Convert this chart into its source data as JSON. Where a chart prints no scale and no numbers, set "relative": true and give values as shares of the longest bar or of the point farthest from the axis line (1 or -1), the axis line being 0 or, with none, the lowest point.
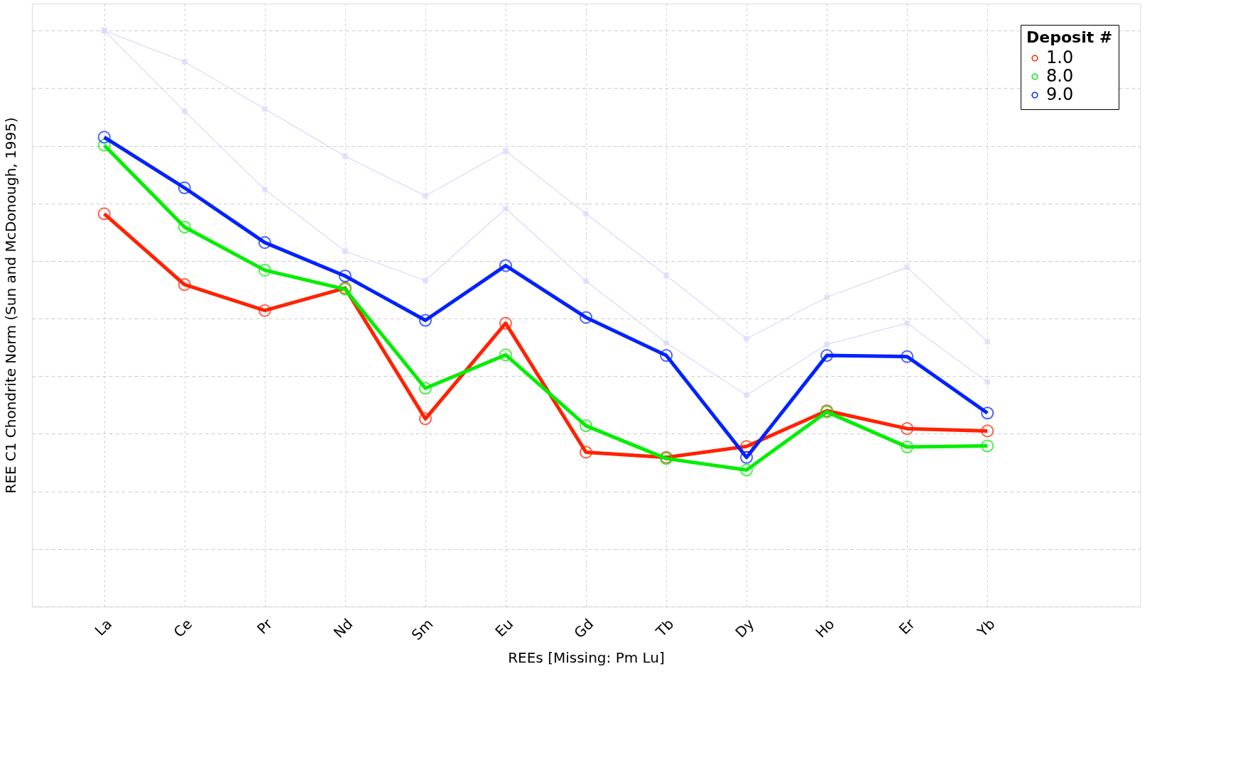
{
  "chart_data": {
    "type": "line",
    "xlabel": "REEs [Missing: Pm Lu]",
    "ylabel": "REE C1 Chondrite Norm (Sun and McDonough, 1995)",
    "legend_title": "Deposit #",
    "legend": "top right",
    "grid": true,
    "relative": true,
    "line_style": "solid",
    "categories": [
      "La",
      "Ce",
      "Pr",
      "Nd",
      "Sm",
      "Eu",
      "Gd",
      "Tb",
      "Dy",
      "Ho",
      "Er",
      "Yb"
    ],
    "series": [
      {
        "color": "#d9d9ff",
        "marker": "square",
        "values": [
          1.0,
          0.946,
          0.864,
          0.782,
          0.713,
          0.791,
          0.682,
          0.575,
          0.465,
          0.537,
          0.589,
          0.46
        ]
      },
      {
        "color": "#d9d9ff",
        "marker": "square",
        "values": [
          1.0,
          0.86,
          0.724,
          0.617,
          0.566,
          0.691,
          0.565,
          0.458,
          0.367,
          0.455,
          0.492,
          0.39
        ]
      },
      {
        "name": "1.0",
        "color": "#ff2200",
        "marker": "circle",
        "values": [
          0.682,
          0.559,
          0.514,
          0.553,
          0.326,
          0.492,
          0.268,
          0.259,
          0.278,
          0.34,
          0.309,
          0.305
        ]
      },
      {
        "name": "8.0",
        "color": "#00ee00",
        "marker": "circle",
        "values": [
          0.801,
          0.659,
          0.584,
          0.551,
          0.379,
          0.437,
          0.314,
          0.257,
          0.237,
          0.338,
          0.277,
          0.279
        ]
      },
      {
        "name": "9.0",
        "color": "#0022ff",
        "marker": "circle",
        "values": [
          0.815,
          0.727,
          0.632,
          0.574,
          0.497,
          0.592,
          0.502,
          0.436,
          0.259,
          0.436,
          0.434,
          0.336
        ]
      }
    ]
  }
}
